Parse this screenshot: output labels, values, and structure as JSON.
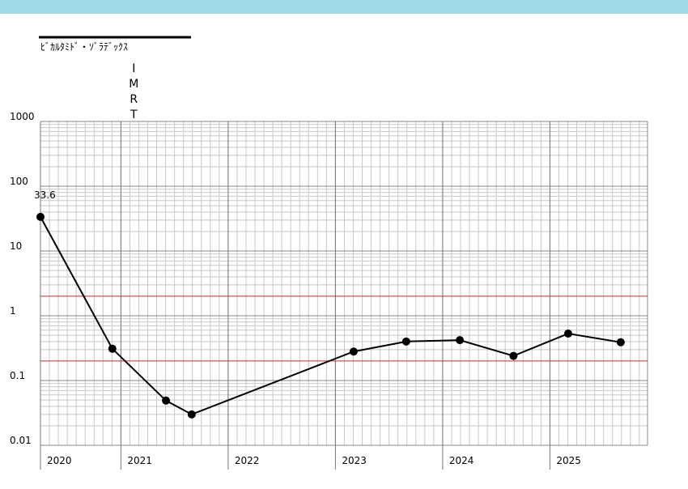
{
  "chart_data": {
    "type": "line",
    "title": "ﾋﾞｶﾙﾀﾐﾄﾞ・ｿﾞﾗﾃﾞｯｸｽ",
    "annotation": {
      "text": "IMRT",
      "x": 2021.12
    },
    "x": [
      2020.25,
      2020.92,
      2021.42,
      2021.66,
      2023.17,
      2023.66,
      2024.16,
      2024.66,
      2025.17,
      2025.66
    ],
    "series": [
      {
        "color": "#000000",
        "values": [
          33.6,
          0.31,
          0.049,
          0.03,
          0.28,
          0.4,
          0.42,
          0.24,
          0.53,
          0.39
        ]
      }
    ],
    "xlim": [
      2020.25,
      2025.91
    ],
    "xticks": [
      {
        "value": 2020.25,
        "label": "2020"
      },
      2021,
      2022,
      2023,
      2024,
      2025
    ],
    "ylim": [
      0.01,
      1000
    ],
    "yticks": [
      0.01,
      0.1,
      1,
      10,
      100,
      1000
    ],
    "log_y": true,
    "grid": true,
    "reference_lines": [
      {
        "value": 2,
        "color": "#cc3333"
      },
      {
        "value": 0.2,
        "color": "#cc3333"
      }
    ]
  }
}
